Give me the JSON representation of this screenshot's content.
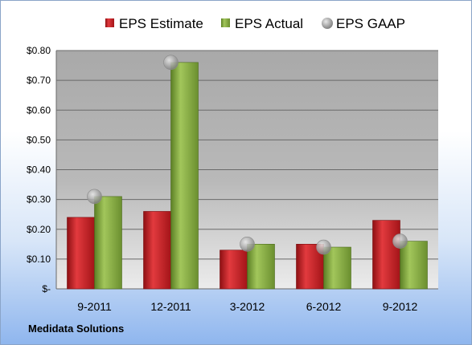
{
  "footer": "Medidata Solutions",
  "colors": {
    "estimate": "#c0181c",
    "actual": "#7ea83a",
    "gaap": "#a8a8a8",
    "plot_bg": "#b4b4b4"
  },
  "chart_data": {
    "type": "bar",
    "title": "",
    "xlabel": "",
    "ylabel": "",
    "categories": [
      "9-2011",
      "12-2011",
      "3-2012",
      "6-2012",
      "9-2012"
    ],
    "ylim": [
      0,
      0.8
    ],
    "yticks": [
      0,
      0.1,
      0.2,
      0.3,
      0.4,
      0.5,
      0.6,
      0.7,
      0.8
    ],
    "ytick_labels": [
      "$-",
      "$0.10",
      "$0.20",
      "$0.30",
      "$0.40",
      "$0.50",
      "$0.60",
      "$0.70",
      "$0.80"
    ],
    "grid": true,
    "legend_position": "top",
    "series": [
      {
        "name": "EPS Estimate",
        "kind": "bar",
        "values": [
          0.24,
          0.26,
          0.13,
          0.15,
          0.23
        ]
      },
      {
        "name": "EPS Actual",
        "kind": "bar",
        "values": [
          0.31,
          0.76,
          0.15,
          0.14,
          0.16
        ]
      },
      {
        "name": "EPS GAAP",
        "kind": "marker",
        "values": [
          0.31,
          0.76,
          0.15,
          0.14,
          0.16
        ]
      }
    ]
  }
}
